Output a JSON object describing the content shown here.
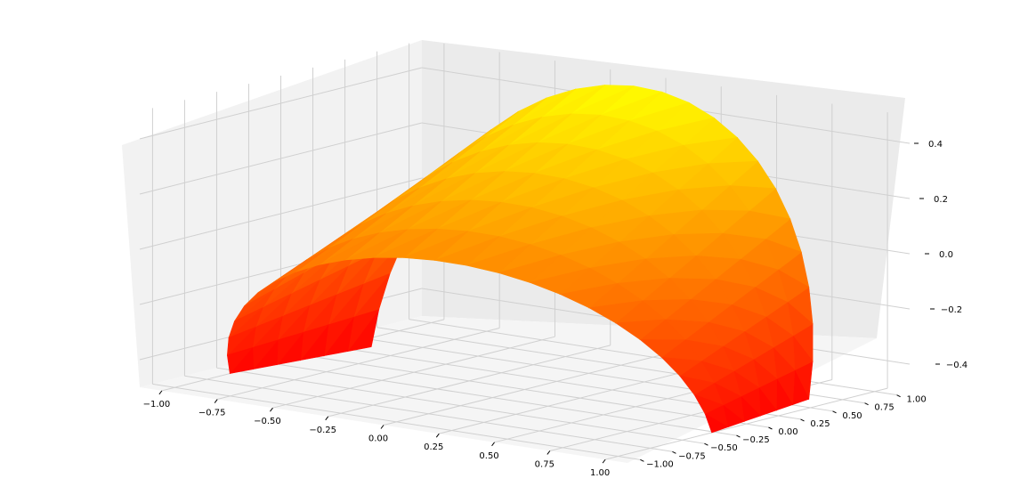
{
  "chart_data": {
    "type": "surface3d",
    "title": "",
    "xlabel": "",
    "ylabel": "",
    "zlabel": "",
    "x_ticks": [
      "−1.00",
      "−0.75",
      "−0.50",
      "−0.25",
      "0.00",
      "0.25",
      "0.50",
      "0.75",
      "1.00"
    ],
    "y_ticks": [
      "−1.00",
      "−0.75",
      "−0.50",
      "−0.25",
      "0.00",
      "0.25",
      "0.50",
      "0.75",
      "1.00"
    ],
    "z_ticks": [
      "−0.4",
      "−0.2",
      "0.0",
      "0.2",
      "0.4"
    ],
    "xlim": [
      -1.1,
      1.1
    ],
    "ylim": [
      -1.1,
      1.1
    ],
    "zlim": [
      -0.5,
      0.5
    ],
    "grid": true,
    "pane_color": "#f2f2f2",
    "colormap": "autumn",
    "colors": {
      "low": "#ff0000",
      "high": "#ffff00"
    },
    "surface": {
      "description": "triangulated arch-shaped surface (z ≈ x·y-like saddle band), low at ends, high at crest",
      "z_range": [
        -0.5,
        0.5
      ]
    }
  }
}
